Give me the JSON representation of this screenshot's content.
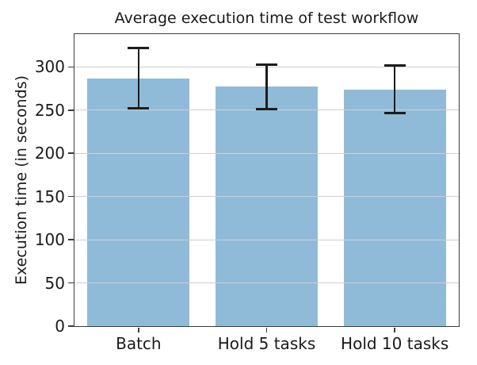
{
  "chart_data": {
    "type": "bar",
    "title": "Average execution time of test workflow",
    "xlabel": "",
    "ylabel": "Execution time (in seconds)",
    "categories": [
      "Batch",
      "Hold 5 tasks",
      "Hold 10 tasks"
    ],
    "values": [
      287,
      277,
      274
    ],
    "error_low": [
      252,
      251,
      247
    ],
    "error_high": [
      322,
      303,
      302
    ],
    "yticks": [
      0,
      50,
      100,
      150,
      200,
      250,
      300
    ],
    "ylim": [
      0,
      338
    ],
    "bar_width_fraction": 0.8,
    "grid": "horizontal-above-bars",
    "legend": "none",
    "colors": {
      "bar_fill": "#8fbbd9",
      "error_bar": "#1c1c1c",
      "gridline": "#cfcfcf",
      "spine": "#3c3c3c",
      "text": "#1a1a1a"
    }
  }
}
